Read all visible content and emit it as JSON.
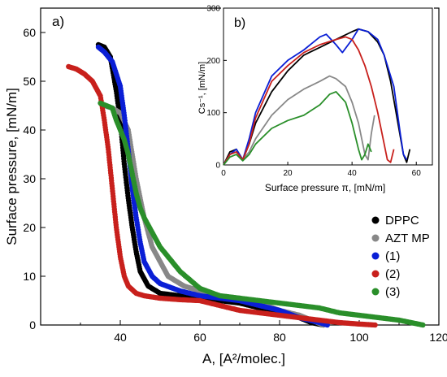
{
  "chart_data": [
    {
      "panel": "a)",
      "type": "scatter",
      "title": "",
      "xlabel": "A, [A²/molec.]",
      "ylabel": "Surface pressure, [mN/m]",
      "xlim": [
        20,
        120
      ],
      "ylim": [
        0,
        65
      ],
      "xticks": [
        40,
        60,
        80,
        100,
        120
      ],
      "yticks": [
        0,
        10,
        20,
        30,
        40,
        50,
        60
      ],
      "grid": false,
      "legend": "bottom-right",
      "series": [
        {
          "name": "DPPC",
          "color": "#000000",
          "x": [
            34.5,
            36,
            37.5,
            39,
            40,
            41,
            42,
            43,
            44,
            45,
            47,
            50,
            55,
            60,
            65,
            70,
            75,
            80,
            85,
            88,
            91
          ],
          "y": [
            57.5,
            57,
            55,
            48,
            42,
            33,
            26,
            20,
            15,
            11,
            8,
            6.5,
            6,
            5.5,
            5,
            4.5,
            3.5,
            2.5,
            1.5,
            0.5,
            0
          ]
        },
        {
          "name": "AZT MP",
          "color": "#888888",
          "x": [
            36,
            38,
            40,
            42,
            44,
            46,
            48,
            52,
            56,
            60,
            65,
            70,
            75,
            80,
            85,
            88,
            91
          ],
          "y": [
            45,
            44.5,
            43.5,
            40,
            30,
            22,
            16,
            10,
            8,
            7,
            6,
            5.5,
            4.5,
            3,
            2,
            1,
            0
          ]
        },
        {
          "name": "(1)",
          "color": "#0a1fd6",
          "x": [
            34.5,
            36,
            38,
            40,
            41,
            42,
            43,
            44,
            45,
            46,
            48,
            50,
            55,
            60,
            65,
            70,
            75,
            80,
            85,
            90,
            92
          ],
          "y": [
            57,
            56,
            54,
            49,
            43,
            36,
            28,
            22,
            17,
            13,
            10,
            8.5,
            7,
            6,
            5.5,
            5,
            4,
            3,
            1.5,
            0.5,
            0
          ]
        },
        {
          "name": "(2)",
          "color": "#c8201c",
          "x": [
            27,
            29,
            31,
            33,
            35,
            36,
            37,
            38,
            39,
            40,
            41,
            42,
            44,
            46,
            50,
            55,
            60,
            65,
            70,
            75,
            80,
            85,
            90,
            95,
            100,
            104
          ],
          "y": [
            53,
            52.5,
            51.5,
            50,
            47,
            42,
            36,
            28,
            20,
            14,
            10,
            8,
            6.5,
            6,
            5.5,
            5.2,
            5,
            4,
            3,
            2.5,
            2,
            1.5,
            1,
            0.5,
            0.2,
            0
          ]
        },
        {
          "name": "(3)",
          "color": "#2a8f2a",
          "x": [
            35,
            36.5,
            38,
            39,
            40,
            41,
            42,
            43,
            44,
            45,
            46,
            48,
            50,
            55,
            60,
            65,
            70,
            75,
            80,
            85,
            90,
            95,
            100,
            105,
            110,
            113,
            116
          ],
          "y": [
            45.5,
            45,
            44.5,
            42,
            40,
            38,
            35,
            31,
            27,
            24,
            22,
            19,
            16,
            11,
            7.5,
            6,
            5.5,
            5,
            4.5,
            4,
            3.5,
            2.5,
            2,
            1.5,
            1,
            0.5,
            0
          ]
        }
      ]
    },
    {
      "panel": "b)",
      "type": "line",
      "title": "",
      "xlabel": "Surface pressure π, [mN/m]",
      "ylabel": "Cs⁻¹, [mN/m]",
      "xlim": [
        0,
        65
      ],
      "ylim": [
        0,
        300
      ],
      "xticks": [
        0,
        20,
        40,
        60
      ],
      "yticks": [
        0,
        100,
        200,
        300
      ],
      "grid": false,
      "series": [
        {
          "color": "#000000",
          "x": [
            0,
            2,
            4,
            6,
            8,
            10,
            15,
            20,
            25,
            30,
            35,
            40,
            42,
            45,
            48,
            50,
            52,
            54,
            56,
            57,
            58
          ],
          "y": [
            0,
            25,
            30,
            10,
            40,
            80,
            140,
            180,
            210,
            225,
            240,
            255,
            260,
            255,
            235,
            210,
            160,
            90,
            20,
            5,
            30
          ]
        },
        {
          "color": "#888888",
          "x": [
            0,
            2,
            4,
            6,
            8,
            10,
            15,
            20,
            25,
            30,
            33,
            35,
            38,
            40,
            42,
            44,
            45,
            46,
            47
          ],
          "y": [
            0,
            20,
            25,
            10,
            25,
            50,
            95,
            125,
            145,
            160,
            170,
            165,
            150,
            120,
            80,
            20,
            10,
            60,
            95
          ]
        },
        {
          "color": "#0a1fd6",
          "x": [
            0,
            2,
            4,
            6,
            8,
            10,
            15,
            20,
            25,
            30,
            32,
            35,
            37,
            40,
            42,
            45,
            48,
            50,
            53,
            55,
            56,
            57
          ],
          "y": [
            0,
            20,
            30,
            10,
            50,
            100,
            170,
            200,
            220,
            245,
            250,
            230,
            215,
            240,
            260,
            255,
            240,
            210,
            150,
            60,
            20,
            10
          ]
        },
        {
          "color": "#c8201c",
          "x": [
            0,
            2,
            4,
            6,
            8,
            10,
            15,
            20,
            25,
            30,
            35,
            38,
            40,
            42,
            44,
            46,
            48,
            50,
            51,
            52,
            53
          ],
          "y": [
            0,
            20,
            25,
            10,
            40,
            90,
            160,
            190,
            215,
            230,
            240,
            245,
            240,
            220,
            190,
            150,
            100,
            40,
            10,
            5,
            30
          ]
        },
        {
          "color": "#2a8f2a",
          "x": [
            0,
            2,
            4,
            6,
            8,
            10,
            15,
            20,
            25,
            30,
            33,
            35,
            38,
            40,
            42,
            43,
            44,
            45,
            46
          ],
          "y": [
            0,
            15,
            20,
            8,
            20,
            40,
            70,
            85,
            95,
            115,
            135,
            140,
            120,
            80,
            30,
            10,
            20,
            40,
            25
          ]
        }
      ]
    }
  ]
}
